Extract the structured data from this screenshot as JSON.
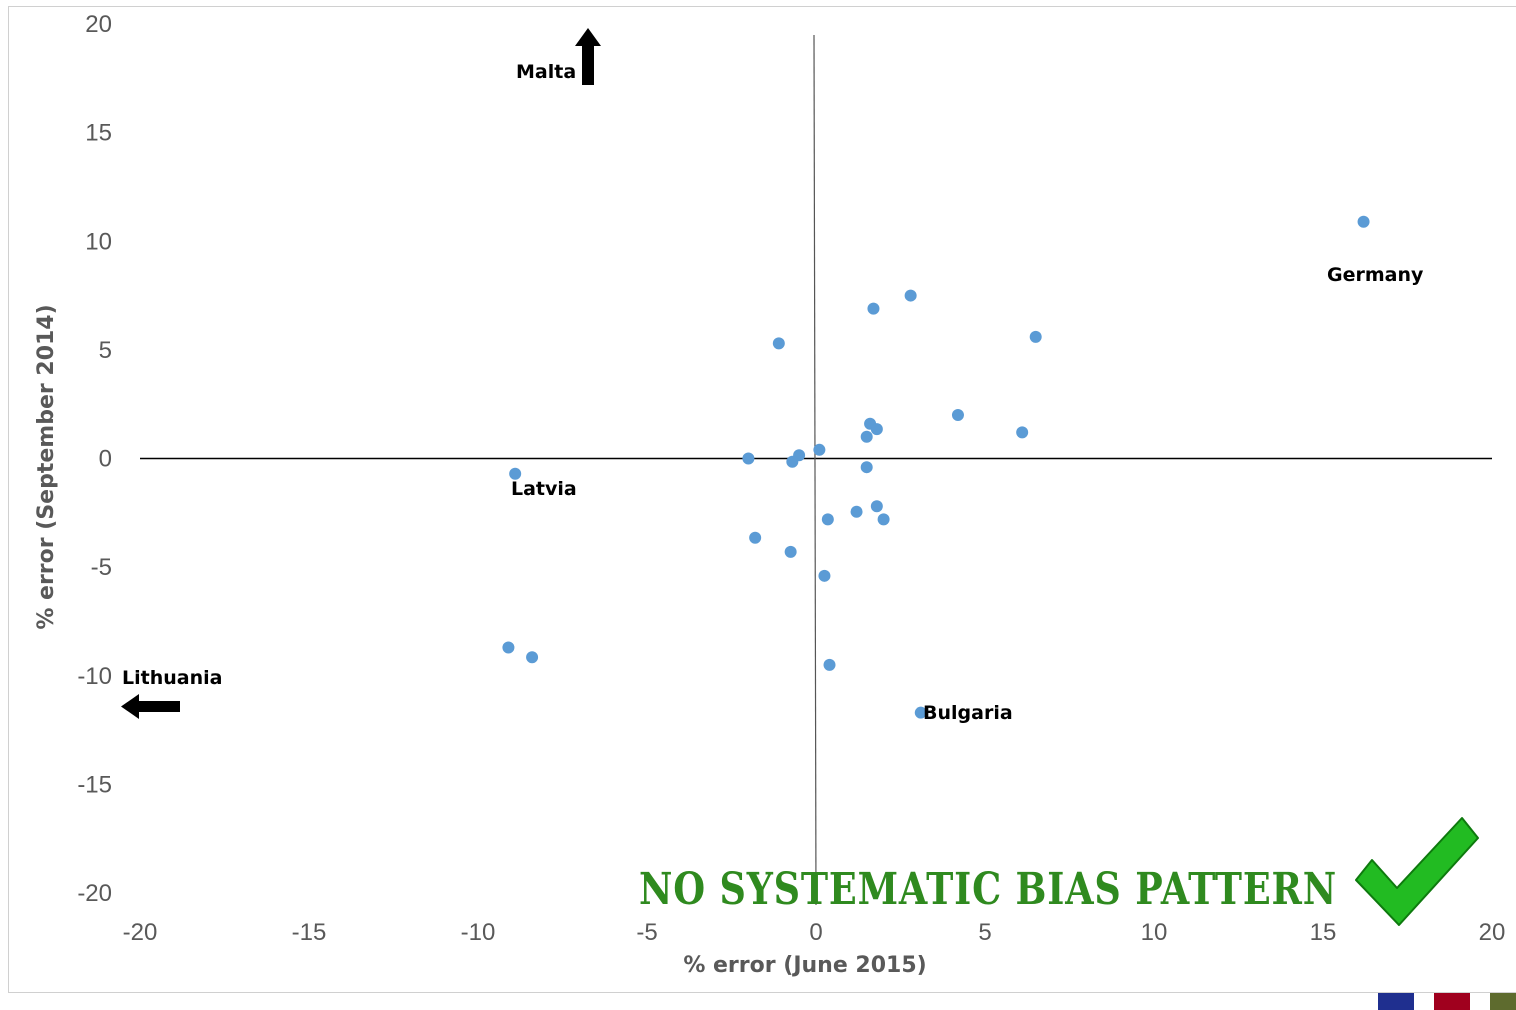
{
  "chart_data": {
    "type": "scatter",
    "xlabel": "% error (June 2015)",
    "ylabel": "% error (September 2014)",
    "xlim": [
      -20,
      20
    ],
    "ylim": [
      -20,
      20
    ],
    "xticks": [
      "-20",
      "-15",
      "-10",
      "-5",
      "0",
      "5",
      "10",
      "15",
      "20"
    ],
    "yticks": [
      "20",
      "15",
      "10",
      "5",
      "0",
      "-5",
      "-10",
      "-15",
      "-20"
    ],
    "xtick_values": [
      -20,
      -15,
      -10,
      -5,
      0,
      5,
      10,
      15,
      20
    ],
    "ytick_values": [
      20,
      15,
      10,
      5,
      0,
      -5,
      -10,
      -15,
      -20
    ],
    "grid": false,
    "marker_color": "#5b9bd5",
    "points": [
      {
        "x": 16.2,
        "y": 10.9
      },
      {
        "x": 2.8,
        "y": 7.5
      },
      {
        "x": 1.7,
        "y": 6.9
      },
      {
        "x": 6.5,
        "y": 5.6
      },
      {
        "x": -1.1,
        "y": 5.3
      },
      {
        "x": 4.2,
        "y": 2.0
      },
      {
        "x": 1.6,
        "y": 1.6
      },
      {
        "x": 1.8,
        "y": 1.35
      },
      {
        "x": 6.1,
        "y": 1.2
      },
      {
        "x": 1.5,
        "y": 1.0
      },
      {
        "x": 0.1,
        "y": 0.4
      },
      {
        "x": -0.5,
        "y": 0.15
      },
      {
        "x": -2.0,
        "y": 0.0
      },
      {
        "x": -0.7,
        "y": -0.15
      },
      {
        "x": 1.5,
        "y": -0.4
      },
      {
        "x": -8.9,
        "y": -0.7
      },
      {
        "x": 1.8,
        "y": -2.2
      },
      {
        "x": 1.2,
        "y": -2.45
      },
      {
        "x": 0.35,
        "y": -2.8
      },
      {
        "x": 2.0,
        "y": -2.8
      },
      {
        "x": -1.8,
        "y": -3.65
      },
      {
        "x": -0.75,
        "y": -4.3
      },
      {
        "x": 0.25,
        "y": -5.4
      },
      {
        "x": -9.1,
        "y": -8.7
      },
      {
        "x": -8.4,
        "y": -9.15
      },
      {
        "x": 0.4,
        "y": -9.5
      },
      {
        "x": 3.1,
        "y": -11.7
      }
    ],
    "annotations": [
      {
        "text": "Germany",
        "x": 16.2,
        "y": 10.9
      },
      {
        "text": "Latvia",
        "x": -8.9,
        "y": -0.7
      },
      {
        "text": "Bulgaria",
        "x": 3.1,
        "y": -11.7
      },
      {
        "text": "Malta",
        "direction": "up"
      },
      {
        "text": "Lithuania",
        "direction": "left"
      }
    ]
  },
  "banner": {
    "text": "NO SYSTEMATIC BIAS PATTERN",
    "color": "#2f8a1f",
    "icon": "checkmark-icon",
    "icon_color": "#22bb22"
  },
  "footer_flags": {
    "colors": [
      "#1f2f8f",
      "#a0001e",
      "#5e6b2e"
    ]
  }
}
